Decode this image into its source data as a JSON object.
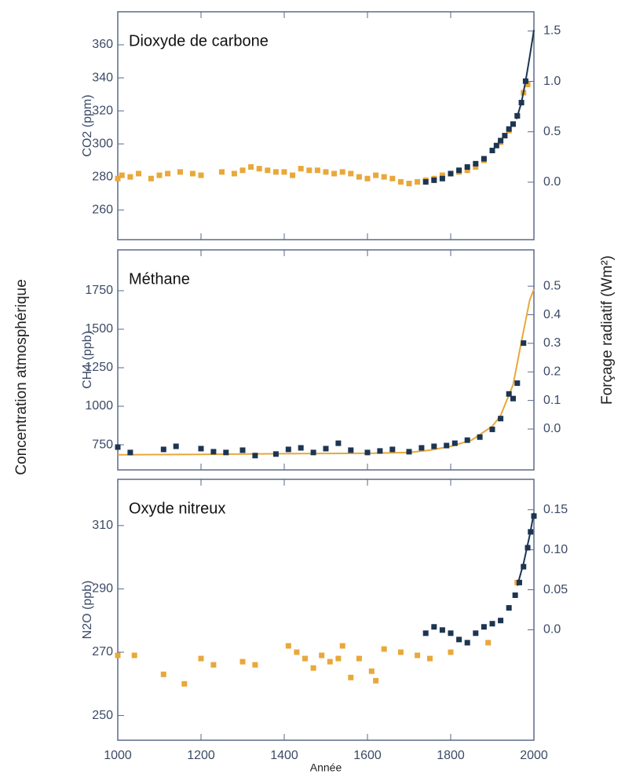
{
  "xlabel": "Année",
  "ylabel": "Concentration atmosphérique",
  "y2label": "Forçage radiatif (Wm²)",
  "xlim": [
    1000,
    2000
  ],
  "xticks": [
    1000,
    1200,
    1400,
    1600,
    1800,
    2000
  ],
  "chart_data": [
    {
      "type": "scatter",
      "title": "Dioxyde de carbone",
      "ylabel": "CO2 (ppm)",
      "ylim": [
        242,
        380
      ],
      "yticks": [
        260,
        280,
        300,
        320,
        340,
        360
      ],
      "y2lim": [
        -0.57,
        1.69
      ],
      "y2ticks": [
        {
          "value": 0,
          "label": "0.0"
        },
        0.5,
        {
          "value": 1,
          "label": "1.0"
        },
        1.5
      ],
      "series": [
        {
          "type": "scatter",
          "color": "#e8a83a",
          "x": [
            1000,
            1010,
            1030,
            1050,
            1080,
            1100,
            1120,
            1150,
            1180,
            1200,
            1250,
            1280,
            1300,
            1320,
            1340,
            1360,
            1380,
            1400,
            1420,
            1440,
            1460,
            1480,
            1500,
            1520,
            1540,
            1560,
            1580,
            1600,
            1620,
            1640,
            1660,
            1680,
            1700,
            1720,
            1740,
            1760,
            1780,
            1800,
            1820,
            1840,
            1860,
            1880,
            1900,
            1920,
            1940,
            1960,
            1975,
            1985
          ],
          "values": [
            279,
            281,
            280,
            282,
            279,
            281,
            282,
            283,
            282,
            281,
            283,
            282,
            284,
            286,
            285,
            284,
            283,
            283,
            281,
            285,
            284,
            284,
            283,
            282,
            283,
            282,
            280,
            279,
            281,
            280,
            279,
            277,
            276,
            277,
            278,
            279,
            281,
            282,
            283,
            284,
            286,
            290,
            296,
            301,
            308,
            317,
            331,
            336
          ]
        },
        {
          "type": "scatter",
          "color": "#1c3552",
          "x": [
            1740,
            1760,
            1780,
            1800,
            1820,
            1840,
            1860,
            1880,
            1900,
            1910,
            1920,
            1930,
            1940,
            1950,
            1960,
            1970,
            1980
          ],
          "values": [
            277,
            278,
            279,
            282,
            284,
            286,
            288,
            291,
            296,
            299,
            302,
            305,
            309,
            312,
            317,
            325,
            338
          ]
        },
        {
          "type": "line",
          "color": "#1c3552",
          "x": [
            1958,
            1970,
            1980,
            1990,
            2000
          ],
          "values": [
            315,
            325,
            338,
            353,
            369
          ]
        }
      ]
    },
    {
      "type": "scatter",
      "title": "Méthane",
      "ylabel": "CH4 (ppb)",
      "ylim": [
        587,
        2015
      ],
      "yticks": [
        750,
        1000,
        1250,
        1500,
        1750
      ],
      "y2lim": [
        -0.143,
        0.627
      ],
      "y2ticks": [
        {
          "value": 0,
          "label": "0.0"
        },
        0.1,
        0.2,
        0.3,
        0.4,
        0.5
      ],
      "series": [
        {
          "type": "line",
          "color": "#e8a83a",
          "x": [
            1000,
            1200,
            1400,
            1600,
            1700,
            1750,
            1800,
            1850,
            1900,
            1920,
            1950,
            1970,
            1990,
            2000
          ],
          "values": [
            685,
            688,
            692,
            695,
            700,
            715,
            740,
            780,
            870,
            940,
            1140,
            1420,
            1690,
            1760
          ]
        },
        {
          "type": "scatter",
          "color": "#1c3552",
          "x": [
            1000,
            1030,
            1110,
            1140,
            1200,
            1230,
            1260,
            1300,
            1330,
            1380,
            1410,
            1440,
            1470,
            1500,
            1530,
            1560,
            1600,
            1630,
            1660,
            1700,
            1730,
            1760,
            1790,
            1810,
            1840,
            1870,
            1900,
            1920,
            1940,
            1950,
            1960,
            1975
          ],
          "values": [
            735,
            700,
            720,
            740,
            725,
            705,
            700,
            715,
            680,
            690,
            720,
            730,
            700,
            725,
            760,
            715,
            700,
            710,
            720,
            705,
            730,
            740,
            745,
            760,
            780,
            800,
            850,
            920,
            1080,
            1050,
            1150,
            1410
          ]
        }
      ]
    },
    {
      "type": "scatter",
      "title": "Oxyde nitreux",
      "ylabel": "N2O (ppb)",
      "ylim": [
        242.2,
        324.6
      ],
      "yticks": [
        250,
        270,
        290,
        310
      ],
      "y2lim": [
        -0.138,
        0.188
      ],
      "y2ticks": [
        {
          "value": 0,
          "label": "0.0"
        },
        0.05,
        {
          "value": 0.1,
          "label": "0.10"
        },
        0.15
      ],
      "series": [
        {
          "type": "scatter",
          "color": "#e8a83a",
          "x": [
            1000,
            1040,
            1110,
            1160,
            1200,
            1230,
            1300,
            1330,
            1410,
            1430,
            1450,
            1470,
            1490,
            1510,
            1530,
            1540,
            1560,
            1580,
            1610,
            1620,
            1640,
            1680,
            1720,
            1750,
            1800,
            1890,
            1960
          ],
          "values": [
            269,
            269,
            263,
            260,
            268,
            266,
            267,
            266,
            272,
            270,
            268,
            265,
            269,
            267,
            268,
            272,
            262,
            268,
            264,
            261,
            271,
            270,
            269,
            268,
            270,
            273,
            292
          ]
        },
        {
          "type": "scatter",
          "color": "#1c3552",
          "x": [
            1740,
            1760,
            1780,
            1800,
            1820,
            1840,
            1860,
            1880,
            1900,
            1920,
            1940,
            1955,
            1965,
            1975,
            1985,
            1992,
            2000
          ],
          "values": [
            276,
            278,
            277,
            276,
            274,
            273,
            276,
            278,
            279,
            280,
            284,
            288,
            292,
            297,
            303,
            308,
            313
          ]
        },
        {
          "type": "line",
          "color": "#1c3552",
          "x": [
            1960,
            1975,
            1990,
            2000
          ],
          "values": [
            291,
            298,
            307,
            314
          ]
        }
      ]
    }
  ]
}
